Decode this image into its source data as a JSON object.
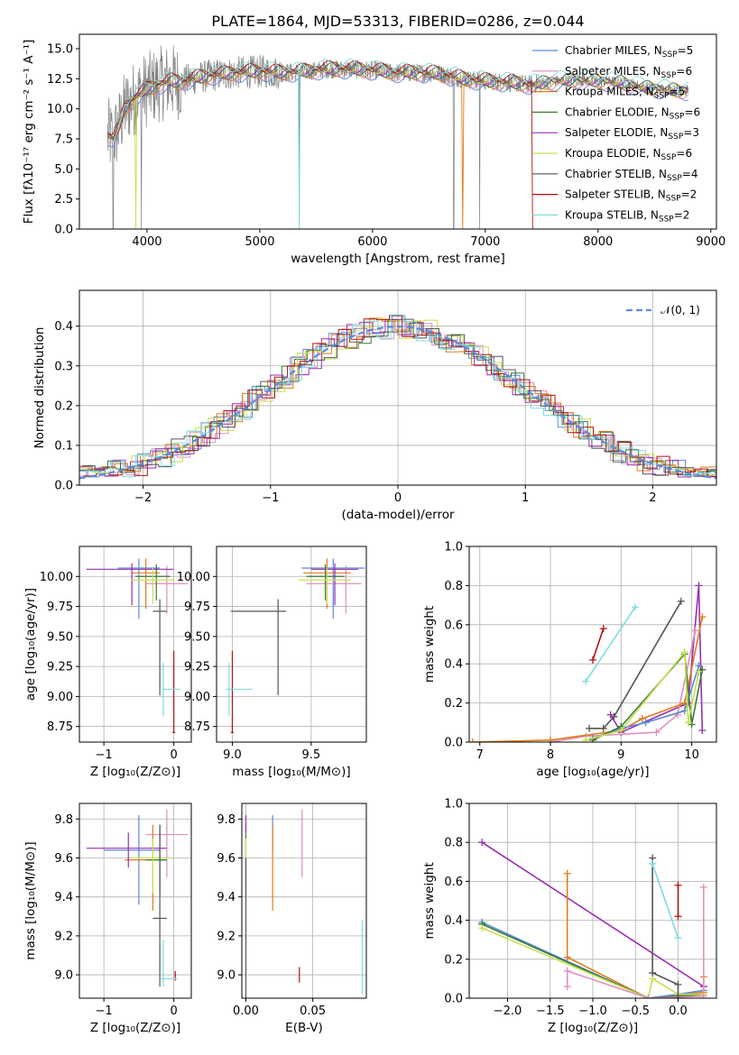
{
  "palette": {
    "chabrier_miles": "#5b8bd8",
    "salpeter_miles": "#e08ec0",
    "kroupa_miles": "#e07b1c",
    "chabrier_elodie": "#3a7a3a",
    "salpeter_elodie": "#9a2db0",
    "kroupa_elodie": "#c8e050",
    "chabrier_stelib": "#555555",
    "salpeter_stelib": "#b01010",
    "kroupa_stelib": "#7fdbe0",
    "data": "#7f7f7f",
    "gauss": "#5b8bd8"
  },
  "chart_data": [
    {
      "id": "spectrum",
      "type": "line",
      "title": "PLATE=1864, MJD=53313, FIBERID=0286, z=0.044",
      "xlabel": "wavelength [Angstrom, rest frame]",
      "ylabel": "Flux [fλ10⁻¹⁷ erg cm⁻² s⁻¹ A⁻¹]",
      "xlim": [
        3400,
        9050
      ],
      "ylim": [
        0,
        16.2
      ],
      "xticks": [
        4000,
        5000,
        6000,
        7000,
        8000,
        9000
      ],
      "yticks": [
        0.0,
        2.5,
        5.0,
        7.5,
        10.0,
        12.5,
        15.0
      ],
      "legend_position": "right",
      "legend": [
        {
          "base": "Chabrier MILES, N",
          "sub": "SSP",
          "tail": "=5",
          "color": "chabrier_miles"
        },
        {
          "base": "Salpeter MILES, N",
          "sub": "SSP",
          "tail": "=6",
          "color": "salpeter_miles"
        },
        {
          "base": "Kroupa MILES, N",
          "sub": "SSP",
          "tail": "=5",
          "color": "kroupa_miles"
        },
        {
          "base": "Chabrier ELODIE, N",
          "sub": "SSP",
          "tail": "=6",
          "color": "chabrier_elodie"
        },
        {
          "base": "Salpeter ELODIE, N",
          "sub": "SSP",
          "tail": "=3",
          "color": "salpeter_elodie"
        },
        {
          "base": "Kroupa ELODIE, N",
          "sub": "SSP",
          "tail": "=6",
          "color": "kroupa_elodie"
        },
        {
          "base": "Chabrier STELIB, N",
          "sub": "SSP",
          "tail": "=4",
          "color": "chabrier_stelib"
        },
        {
          "base": "Salpeter STELIB, N",
          "sub": "SSP",
          "tail": "=2",
          "color": "salpeter_stelib"
        },
        {
          "base": "Kroupa STELIB, N",
          "sub": "SSP",
          "tail": "=2",
          "color": "kroupa_stelib"
        }
      ],
      "continuum": {
        "wavelength": [
          3650,
          3700,
          3750,
          3800,
          3900,
          4000,
          4100,
          4200,
          4300,
          4400,
          4600,
          4800,
          5000,
          5200,
          5400,
          5600,
          5800,
          6000,
          6200,
          6400,
          6600,
          6800,
          7000,
          7200,
          7400,
          7600,
          7800,
          8000,
          8200,
          8400,
          8600,
          8800
        ],
        "flux": [
          7.8,
          7.5,
          8.5,
          10.0,
          11.0,
          11.6,
          12.0,
          12.3,
          12.2,
          12.5,
          12.8,
          13.0,
          13.1,
          13.0,
          13.1,
          13.3,
          13.3,
          13.2,
          13.0,
          13.0,
          12.9,
          12.5,
          12.3,
          12.2,
          12.0,
          12.3,
          12.4,
          12.3,
          12.2,
          11.8,
          11.6,
          11.5
        ]
      },
      "model_dropouts": [
        {
          "series": "kroupa_elodie",
          "wavelength": 3900
        },
        {
          "series": "kroupa_stelib",
          "wavelength": 5350
        },
        {
          "series": "kroupa_miles",
          "wavelength": 6800
        },
        {
          "series": "salpeter_stelib",
          "wavelength": 7420
        }
      ],
      "data_spikes_to_zero": [
        3700,
        3950,
        5350,
        6720,
        6950
      ]
    },
    {
      "id": "residuals",
      "type": "histogram",
      "xlabel": "(data-model)/error",
      "ylabel": "Normed distribution",
      "xlim": [
        -2.5,
        2.5
      ],
      "ylim": [
        0,
        0.49
      ],
      "xticks": [
        -2,
        -1,
        0,
        1,
        2
      ],
      "yticks": [
        0.0,
        0.1,
        0.2,
        0.3,
        0.4
      ],
      "grid": true,
      "bin_width": 0.1,
      "gauss_label": "𝒩(0, 1)",
      "legend_position": "top-right"
    },
    {
      "id": "age_vs_Z",
      "type": "errorbar",
      "xlabel": "Z [log₁₀(Z/Z⊙)]",
      "ylabel": "age  [log₁₀(age/yr)]",
      "xlim": [
        -1.35,
        0.25
      ],
      "ylim": [
        8.62,
        10.25
      ],
      "xticks": [
        -1,
        0
      ],
      "yticks": [
        8.75,
        9.0,
        9.25,
        9.5,
        9.75,
        10.0
      ],
      "grid": true,
      "points": [
        {
          "series": "chabrier_miles",
          "x": -0.5,
          "xerr": [
            0.3,
            0.3
          ],
          "y": 10.07,
          "yerr": [
            0.42,
            0.08
          ]
        },
        {
          "series": "salpeter_miles",
          "x": -0.1,
          "xerr": [
            0.3,
            0.3
          ],
          "y": 9.94,
          "yerr": [
            0.25,
            0.15
          ]
        },
        {
          "series": "kroupa_miles",
          "x": -0.4,
          "xerr": [
            0.2,
            0.2
          ],
          "y": 10.03,
          "yerr": [
            0.3,
            0.12
          ]
        },
        {
          "series": "chabrier_elodie",
          "x": -0.25,
          "xerr": [
            0.3,
            0.2
          ],
          "y": 10.0,
          "yerr": [
            0.2,
            0.1
          ]
        },
        {
          "series": "salpeter_elodie",
          "x": -0.6,
          "xerr": [
            0.65,
            0.6
          ],
          "y": 10.06,
          "yerr": [
            0.3,
            0.05
          ]
        },
        {
          "series": "kroupa_elodie",
          "x": -0.3,
          "xerr": [
            0.3,
            0.3
          ],
          "y": 9.97,
          "yerr": [
            0.2,
            0.1
          ]
        },
        {
          "series": "chabrier_stelib",
          "x": -0.2,
          "xerr": [
            0.1,
            0.1
          ],
          "y": 9.71,
          "yerr": [
            0.7,
            0.1
          ]
        },
        {
          "series": "salpeter_stelib",
          "x": 0.0,
          "xerr": [
            0.02,
            0.02
          ],
          "y": 8.7,
          "yerr": [
            0.0,
            0.68
          ]
        },
        {
          "series": "kroupa_stelib",
          "x": -0.15,
          "xerr": [
            0.02,
            0.25
          ],
          "y": 9.06,
          "yerr": [
            0.22,
            0.22
          ]
        }
      ]
    },
    {
      "id": "age_vs_mass",
      "type": "errorbar",
      "xlabel": "mass [log₁₀(M/M⊙)]",
      "ylabel": "",
      "xlim": [
        8.9,
        9.85
      ],
      "ylim": [
        8.62,
        10.25
      ],
      "xticks": [
        9.0,
        9.5
      ],
      "yticks": [
        8.75,
        9.0,
        9.25,
        9.5,
        9.75,
        10.0
      ],
      "grid": true,
      "points": [
        {
          "series": "chabrier_miles",
          "x": 9.64,
          "xerr": [
            0.2,
            0.2
          ],
          "y": 10.07,
          "yerr": [
            0.42,
            0.08
          ]
        },
        {
          "series": "salpeter_miles",
          "x": 9.72,
          "xerr": [
            0.25,
            0.1
          ],
          "y": 9.94,
          "yerr": [
            0.25,
            0.15
          ]
        },
        {
          "series": "kroupa_miles",
          "x": 9.6,
          "xerr": [
            0.15,
            0.15
          ],
          "y": 10.03,
          "yerr": [
            0.3,
            0.12
          ]
        },
        {
          "series": "chabrier_elodie",
          "x": 9.59,
          "xerr": [
            0.12,
            0.12
          ],
          "y": 10.0,
          "yerr": [
            0.2,
            0.1
          ]
        },
        {
          "series": "salpeter_elodie",
          "x": 9.65,
          "xerr": [
            0.15,
            0.15
          ],
          "y": 10.06,
          "yerr": [
            0.3,
            0.05
          ]
        },
        {
          "series": "kroupa_elodie",
          "x": 9.6,
          "xerr": [
            0.18,
            0.15
          ],
          "y": 9.97,
          "yerr": [
            0.2,
            0.1
          ]
        },
        {
          "series": "chabrier_stelib",
          "x": 9.29,
          "xerr": [
            0.3,
            0.05
          ],
          "y": 9.71,
          "yerr": [
            0.7,
            0.1
          ]
        },
        {
          "series": "salpeter_stelib",
          "x": 9.0,
          "xerr": [
            0.01,
            0.01
          ],
          "y": 8.7,
          "yerr": [
            0.0,
            0.68
          ]
        },
        {
          "series": "kroupa_stelib",
          "x": 8.98,
          "xerr": [
            0.02,
            0.15
          ],
          "y": 9.06,
          "yerr": [
            0.22,
            0.22
          ]
        }
      ]
    },
    {
      "id": "weight_vs_age",
      "type": "line",
      "xlabel": "age  [log₁₀(age/yr)]",
      "ylabel": "mass weight",
      "xlim": [
        6.85,
        10.35
      ],
      "ylim": [
        0,
        1.0
      ],
      "xticks": [
        7,
        8,
        9,
        10
      ],
      "yticks": [
        0.0,
        0.2,
        0.4,
        0.6,
        0.8,
        1.0
      ],
      "grid": true,
      "series": [
        {
          "series": "kroupa_stelib",
          "x": [
            8.5,
            9.2
          ],
          "y": [
            0.31,
            0.69
          ]
        },
        {
          "series": "salpeter_stelib",
          "x": [
            8.6,
            8.75
          ],
          "y": [
            0.42,
            0.58
          ]
        },
        {
          "series": "chabrier_stelib",
          "x": [
            8.55,
            8.75,
            8.9,
            9.85
          ],
          "y": [
            0.07,
            0.07,
            0.13,
            0.72
          ]
        },
        {
          "series": "salpeter_elodie",
          "x": [
            8.85,
            9.0,
            9.95,
            10.1,
            10.15
          ],
          "y": [
            0.14,
            0.05,
            0.2,
            0.8,
            0.06
          ]
        },
        {
          "series": "salpeter_miles",
          "x": [
            8.0,
            8.5,
            9.5,
            9.8,
            10.05
          ],
          "y": [
            0.0,
            0.03,
            0.05,
            0.14,
            0.57
          ]
        },
        {
          "series": "kroupa_miles",
          "x": [
            6.9,
            8.0,
            9.0,
            9.3,
            9.9,
            10.15
          ],
          "y": [
            0.0,
            0.01,
            0.06,
            0.12,
            0.2,
            0.64
          ]
        },
        {
          "series": "chabrier_miles",
          "x": [
            8.6,
            9.0,
            9.35,
            9.9,
            10.1
          ],
          "y": [
            0.02,
            0.07,
            0.1,
            0.16,
            0.39
          ]
        },
        {
          "series": "chabrier_elodie",
          "x": [
            8.6,
            9.0,
            9.9,
            10.0,
            10.15
          ],
          "y": [
            0.01,
            0.08,
            0.45,
            0.09,
            0.37
          ]
        },
        {
          "series": "kroupa_elodie",
          "x": [
            8.5,
            9.0,
            9.9,
            9.95,
            10.1
          ],
          "y": [
            0.01,
            0.06,
            0.46,
            0.1,
            0.36
          ]
        }
      ]
    },
    {
      "id": "mass_vs_Z",
      "type": "errorbar",
      "xlabel": "Z [log₁₀(Z/Z⊙)]",
      "ylabel": "mass [log₁₀(M/M⊙)]",
      "xlim": [
        -1.35,
        0.25
      ],
      "ylim": [
        8.88,
        9.88
      ],
      "xticks": [
        -1,
        0
      ],
      "yticks": [
        9.0,
        9.2,
        9.4,
        9.6,
        9.8
      ],
      "grid": true,
      "points": [
        {
          "series": "chabrier_miles",
          "x": -0.5,
          "xerr": [
            0.5,
            0.3
          ],
          "y": 9.64,
          "yerr": [
            0.28,
            0.18
          ]
        },
        {
          "series": "salpeter_miles",
          "x": -0.1,
          "xerr": [
            0.3,
            0.3
          ],
          "y": 9.72,
          "yerr": [
            0.22,
            0.13
          ]
        },
        {
          "series": "kroupa_miles",
          "x": -0.3,
          "xerr": [
            0.4,
            0.2
          ],
          "y": 9.59,
          "yerr": [
            0.26,
            0.18
          ]
        },
        {
          "series": "chabrier_elodie",
          "x": -0.2,
          "xerr": [
            0.2,
            0.1
          ],
          "y": 9.59,
          "yerr": [
            0.18,
            0.18
          ]
        },
        {
          "series": "salpeter_elodie",
          "x": -0.65,
          "xerr": [
            0.6,
            0.55
          ],
          "y": 9.65,
          "yerr": [
            0.1,
            0.08
          ]
        },
        {
          "series": "kroupa_elodie",
          "x": -0.3,
          "xerr": [
            0.3,
            0.25
          ],
          "y": 9.6,
          "yerr": [
            0.18,
            0.1
          ]
        },
        {
          "series": "chabrier_stelib",
          "x": -0.2,
          "xerr": [
            0.1,
            0.1
          ],
          "y": 9.29,
          "yerr": [
            0.35,
            0.48
          ]
        },
        {
          "series": "salpeter_stelib",
          "x": 0.02,
          "xerr": [
            0.01,
            0.01
          ],
          "y": 9.0,
          "yerr": [
            0.03,
            0.02
          ]
        },
        {
          "series": "kroupa_stelib",
          "x": -0.15,
          "xerr": [
            0.05,
            0.2
          ],
          "y": 8.98,
          "yerr": [
            0.04,
            0.2
          ]
        }
      ]
    },
    {
      "id": "mass_vs_ebv",
      "type": "errorbar",
      "xlabel": "E(B-V)",
      "ylabel": "",
      "xlim": [
        -0.003,
        0.09
      ],
      "ylim": [
        8.88,
        9.88
      ],
      "xticks": [
        0.0,
        0.05
      ],
      "yticks": [
        9.0,
        9.2,
        9.4,
        9.6,
        9.8
      ],
      "grid": true,
      "points": [
        {
          "series": "chabrier_miles",
          "x": 0.02,
          "y": 9.64,
          "yerr": [
            0.0,
            0.18
          ]
        },
        {
          "series": "salpeter_miles",
          "x": 0.042,
          "y": 9.72,
          "yerr": [
            0.22,
            0.13
          ]
        },
        {
          "series": "kroupa_miles",
          "x": 0.02,
          "y": 9.59,
          "yerr": [
            0.26,
            0.18
          ]
        },
        {
          "series": "chabrier_elodie",
          "x": 0.0,
          "y": 9.59,
          "yerr": [
            0.18,
            0.18
          ]
        },
        {
          "series": "salpeter_elodie",
          "x": 0.0,
          "y": 9.78,
          "yerr": [
            0.05,
            0.04
          ]
        },
        {
          "series": "kroupa_elodie",
          "x": 0.0,
          "y": 9.6,
          "yerr": [
            0.2,
            0.1
          ]
        },
        {
          "series": "chabrier_stelib",
          "x": 0.0,
          "y": 9.2,
          "yerr": [
            0.35,
            0.4
          ]
        },
        {
          "series": "salpeter_stelib",
          "x": 0.04,
          "y": 9.0,
          "yerr": [
            0.04,
            0.04
          ]
        },
        {
          "series": "kroupa_stelib",
          "x": 0.087,
          "y": 9.1,
          "yerr": [
            0.2,
            0.18
          ]
        }
      ]
    },
    {
      "id": "weight_vs_Z",
      "type": "line",
      "xlabel": "Z [log₁₀(Z/Z⊙)]",
      "ylabel": "mass weight",
      "xlim": [
        -2.45,
        0.45
      ],
      "ylim": [
        0,
        1.0
      ],
      "xticks": [
        -2.0,
        -1.5,
        -1.0,
        -0.5,
        0.0
      ],
      "yticks": [
        0.0,
        0.2,
        0.4,
        0.6,
        0.8,
        1.0
      ],
      "grid": true,
      "series": [
        {
          "series": "salpeter_elodie",
          "x": [
            -2.3,
            0.3
          ],
          "y": [
            0.8,
            0.06
          ]
        },
        {
          "series": "kroupa_miles",
          "x": [
            -1.3,
            -1.3,
            -0.35,
            0.3,
            0.3
          ],
          "y": [
            0.64,
            0.21,
            0.0,
            0.03,
            0.11
          ]
        },
        {
          "series": "chabrier_miles",
          "x": [
            -2.3,
            -0.35,
            0.0,
            0.3
          ],
          "y": [
            0.39,
            0.0,
            0.02,
            0.04
          ]
        },
        {
          "series": "chabrier_elodie",
          "x": [
            -2.3,
            -0.35,
            0.0,
            0.3
          ],
          "y": [
            0.38,
            0.0,
            0.01,
            0.02
          ]
        },
        {
          "series": "kroupa_elodie",
          "x": [
            -2.3,
            -0.35,
            -0.3,
            0.0,
            0.3
          ],
          "y": [
            0.36,
            0.0,
            0.1,
            0.02,
            0.02
          ]
        },
        {
          "series": "salpeter_miles",
          "x": [
            -1.3,
            -1.3,
            -0.35,
            0.3,
            0.3
          ],
          "y": [
            0.06,
            0.14,
            0.0,
            0.01,
            0.57
          ]
        },
        {
          "series": "chabrier_stelib",
          "x": [
            -0.3,
            -0.3,
            0.0,
            0.0
          ],
          "y": [
            0.72,
            0.13,
            0.07,
            0.0
          ]
        },
        {
          "series": "kroupa_stelib",
          "x": [
            -0.3,
            0.0
          ],
          "y": [
            0.69,
            0.31
          ]
        },
        {
          "series": "salpeter_stelib",
          "x": [
            0.0,
            0.0
          ],
          "y": [
            0.58,
            0.42
          ]
        }
      ]
    }
  ]
}
